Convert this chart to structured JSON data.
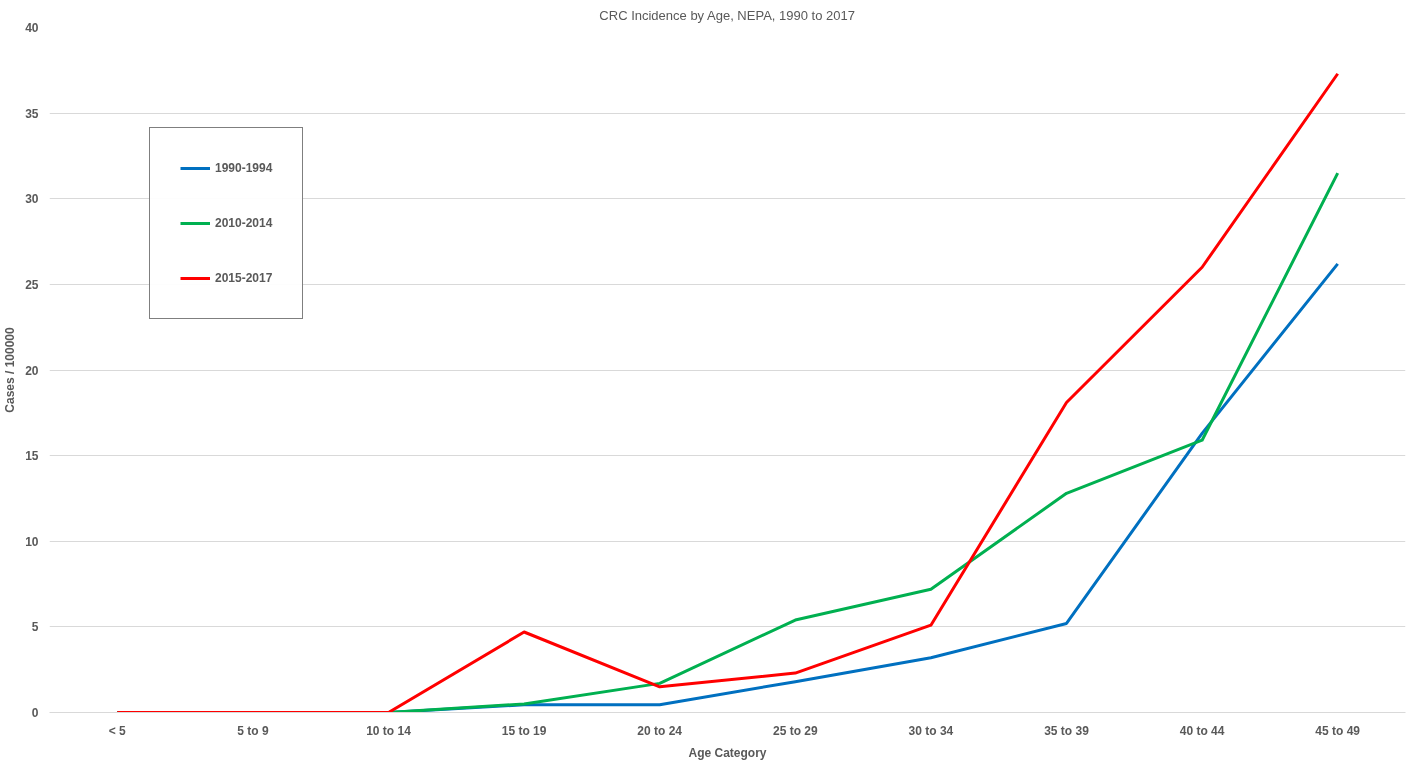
{
  "chart_data": {
    "type": "line",
    "title": "CRC Incidence by Age, NEPA, 1990 to 2017",
    "xlabel": "Age Category",
    "ylabel": "Cases / 100000",
    "categories": [
      "< 5",
      "5 to 9",
      "10 to 14",
      "15 to 19",
      "20 to 24",
      "25 to 29",
      "30 to 34",
      "35 to 39",
      "40 to 44",
      "45 to 49"
    ],
    "series": [
      {
        "name": "1990-1994",
        "color": "#0070c0",
        "values": [
          0,
          0,
          0,
          0.45,
          0.45,
          1.8,
          3.2,
          5.2,
          16.3,
          26.2
        ]
      },
      {
        "name": "2010-2014",
        "color": "#00b050",
        "values": [
          0,
          0,
          0,
          0.5,
          1.7,
          5.4,
          7.2,
          12.8,
          15.9,
          31.5
        ]
      },
      {
        "name": "2015-2017",
        "color": "#ff0000",
        "values": [
          0,
          0,
          0,
          4.7,
          1.5,
          2.3,
          5.1,
          18.1,
          26.0,
          37.3
        ]
      }
    ],
    "ylim": [
      0,
      40
    ],
    "yticks": [
      0,
      5,
      10,
      15,
      20,
      25,
      30,
      35,
      40
    ],
    "grid": "y",
    "legend": "top left",
    "marker": "none",
    "line_style": "solid"
  }
}
